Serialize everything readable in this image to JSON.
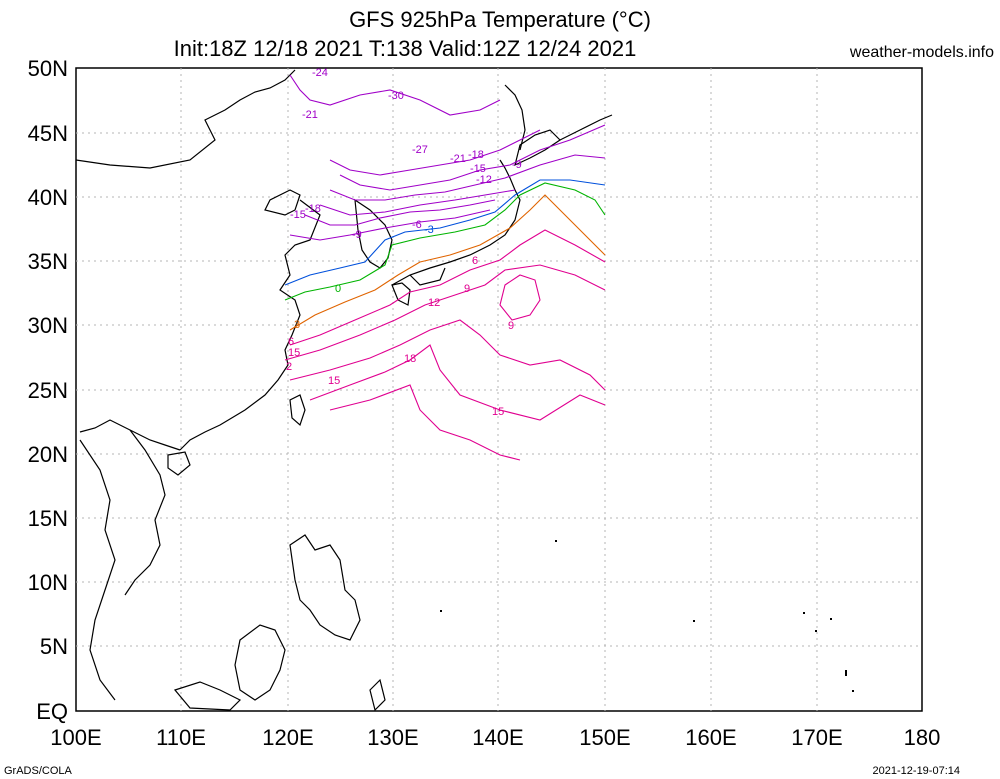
{
  "title": "GFS 925hPa Temperature (°C)",
  "subtitle": "Init:18Z 12/18 2021 T:138 Valid:12Z 12/24 2021",
  "brand": "weather-models.info",
  "footer_left": "GrADS/COLA",
  "footer_right": "2021-12-19-07:14",
  "lat_labels": [
    "50N",
    "45N",
    "40N",
    "35N",
    "30N",
    "25N",
    "20N",
    "15N",
    "10N",
    "5N",
    "EQ"
  ],
  "lon_labels": [
    "100E",
    "110E",
    "120E",
    "130E",
    "140E",
    "150E",
    "160E",
    "170E",
    "180"
  ],
  "contour_labels": [
    {
      "text": "-24",
      "color": "#a000c8"
    },
    {
      "text": "-30",
      "color": "#a000c8"
    },
    {
      "text": "-21",
      "color": "#a000c8"
    },
    {
      "text": "-27",
      "color": "#a000c8"
    },
    {
      "text": "-21",
      "color": "#a000c8"
    },
    {
      "text": "-18",
      "color": "#a000c8"
    },
    {
      "text": "-15",
      "color": "#a000c8"
    },
    {
      "text": "-12",
      "color": "#a000c8"
    },
    {
      "text": "-9",
      "color": "#a000c8"
    },
    {
      "text": "-15",
      "color": "#a000c8"
    },
    {
      "text": "-18",
      "color": "#a000c8"
    },
    {
      "text": "-9",
      "color": "#a000c8"
    },
    {
      "text": "-6",
      "color": "#a000c8"
    },
    {
      "text": "-3",
      "color": "#0050dc"
    },
    {
      "text": "0",
      "color": "#00b400"
    },
    {
      "text": "3",
      "color": "#e06400"
    },
    {
      "text": "6",
      "color": "#e00090"
    },
    {
      "text": "9",
      "color": "#e00090"
    },
    {
      "text": "12",
      "color": "#e00090"
    },
    {
      "text": "9",
      "color": "#e00090"
    },
    {
      "text": "15",
      "color": "#e00090"
    },
    {
      "text": "18",
      "color": "#e00090"
    },
    {
      "text": "15",
      "color": "#e00090"
    },
    {
      "text": "15",
      "color": "#e00090"
    },
    {
      "text": "6",
      "color": "#e00090"
    },
    {
      "text": "2",
      "color": "#e00090"
    }
  ],
  "colors": {
    "cold": "#a000c8",
    "minus3": "#0050dc",
    "zero": "#00b400",
    "plus3": "#e06400",
    "warm": "#e00090",
    "grid": "#b4b4b4",
    "coast": "#000000"
  }
}
